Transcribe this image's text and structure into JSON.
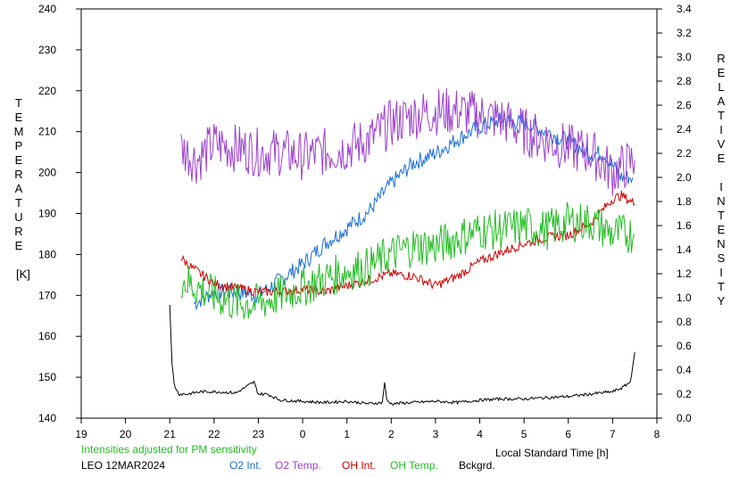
{
  "chart_data": {
    "type": "line",
    "title": "",
    "ylabel_left": "TEMPERATURE",
    "ylabel_left_unit": "[K]",
    "ylabel_right": "RELATIVE INTENSITY",
    "xlabel": "Local Standard Time [h]",
    "x_ticks": [
      "19",
      "20",
      "21",
      "22",
      "23",
      "0",
      "1",
      "2",
      "3",
      "4",
      "5",
      "6",
      "7",
      "8"
    ],
    "y_left_ticks": [
      "140",
      "150",
      "160",
      "170",
      "180",
      "190",
      "200",
      "210",
      "220",
      "230",
      "240"
    ],
    "y_right_ticks": [
      "0.0",
      "0.2",
      "0.4",
      "0.6",
      "0.8",
      "1.0",
      "1.2",
      "1.4",
      "1.6",
      "1.8",
      "2.0",
      "2.2",
      "2.4",
      "2.6",
      "2.8",
      "3.0",
      "3.2",
      "3.4"
    ],
    "x_range": [
      19,
      32
    ],
    "y_left_range": [
      140,
      240
    ],
    "y_right_range": [
      0,
      3.4
    ],
    "grid": false,
    "legend_position": "bottom",
    "note": "Intensities adjusted for PM sensitivity",
    "station": "LEO 12MAR2024",
    "series": [
      {
        "name": "O2 Int.",
        "axis": "right",
        "color": "#1a6fd6",
        "x": [
          21.55,
          22.0,
          22.5,
          23.0,
          23.5,
          24.0,
          24.5,
          25.0,
          25.5,
          26.0,
          26.5,
          27.0,
          27.5,
          28.0,
          28.5,
          29.0,
          29.5,
          30.0,
          30.5,
          30.8,
          31.0,
          31.2,
          31.45
        ],
        "y": [
          0.95,
          1.05,
          1.05,
          1.02,
          1.15,
          1.28,
          1.45,
          1.58,
          1.72,
          1.95,
          2.12,
          2.2,
          2.32,
          2.42,
          2.48,
          2.45,
          2.38,
          2.3,
          2.2,
          2.2,
          2.1,
          2.0,
          2.0
        ]
      },
      {
        "name": "O2 Temp.",
        "axis": "left",
        "color": "#9b3fcc",
        "x": [
          21.25,
          21.6,
          22.0,
          22.5,
          23.0,
          23.5,
          24.0,
          24.5,
          25.0,
          25.5,
          26.0,
          26.5,
          27.0,
          27.5,
          28.0,
          28.5,
          29.0,
          29.5,
          30.0,
          30.5,
          31.0,
          31.5
        ],
        "y": [
          206,
          203,
          207,
          206,
          205,
          205,
          204,
          205,
          206,
          208,
          212,
          214,
          215,
          215,
          214,
          213,
          210,
          208,
          206,
          205,
          200,
          203
        ]
      },
      {
        "name": "OH Int.",
        "axis": "right",
        "color": "#cc0000",
        "x": [
          21.25,
          21.5,
          22.0,
          22.5,
          23.0,
          23.5,
          24.0,
          24.5,
          25.0,
          25.5,
          26.0,
          26.5,
          27.0,
          27.5,
          28.0,
          28.5,
          29.0,
          29.5,
          30.0,
          30.5,
          31.0,
          31.2,
          31.5
        ],
        "y": [
          1.33,
          1.25,
          1.12,
          1.08,
          1.05,
          1.05,
          1.07,
          1.05,
          1.1,
          1.15,
          1.2,
          1.18,
          1.1,
          1.18,
          1.3,
          1.38,
          1.45,
          1.5,
          1.52,
          1.62,
          1.82,
          1.85,
          1.78
        ]
      },
      {
        "name": "OH Temp.",
        "axis": "left",
        "color": "#22bb22",
        "x": [
          21.25,
          21.6,
          22.0,
          22.5,
          23.0,
          23.5,
          24.0,
          24.5,
          25.0,
          25.5,
          26.0,
          26.5,
          27.0,
          27.5,
          28.0,
          28.5,
          29.0,
          29.5,
          30.0,
          30.5,
          31.0,
          31.5
        ],
        "y": [
          174,
          172,
          170,
          168,
          168,
          170,
          172,
          174,
          176,
          177,
          180,
          182,
          182,
          184,
          186,
          186,
          187,
          186,
          188,
          188,
          185,
          185
        ]
      },
      {
        "name": "Bckgrd.",
        "axis": "right",
        "color": "#000000",
        "x": [
          21.0,
          21.05,
          21.1,
          21.2,
          21.4,
          21.7,
          22.0,
          22.5,
          22.9,
          23.0,
          23.2,
          23.5,
          24.0,
          24.5,
          25.0,
          25.5,
          25.8,
          25.85,
          25.9,
          26.0,
          26.5,
          27.0,
          27.5,
          28.0,
          28.5,
          29.0,
          29.5,
          30.0,
          30.5,
          31.0,
          31.2,
          31.4,
          31.5
        ],
        "y": [
          0.95,
          0.45,
          0.28,
          0.2,
          0.2,
          0.22,
          0.22,
          0.21,
          0.3,
          0.2,
          0.2,
          0.15,
          0.14,
          0.13,
          0.14,
          0.12,
          0.13,
          0.3,
          0.15,
          0.12,
          0.13,
          0.14,
          0.13,
          0.15,
          0.16,
          0.16,
          0.17,
          0.18,
          0.2,
          0.22,
          0.25,
          0.3,
          0.55
        ]
      }
    ]
  }
}
